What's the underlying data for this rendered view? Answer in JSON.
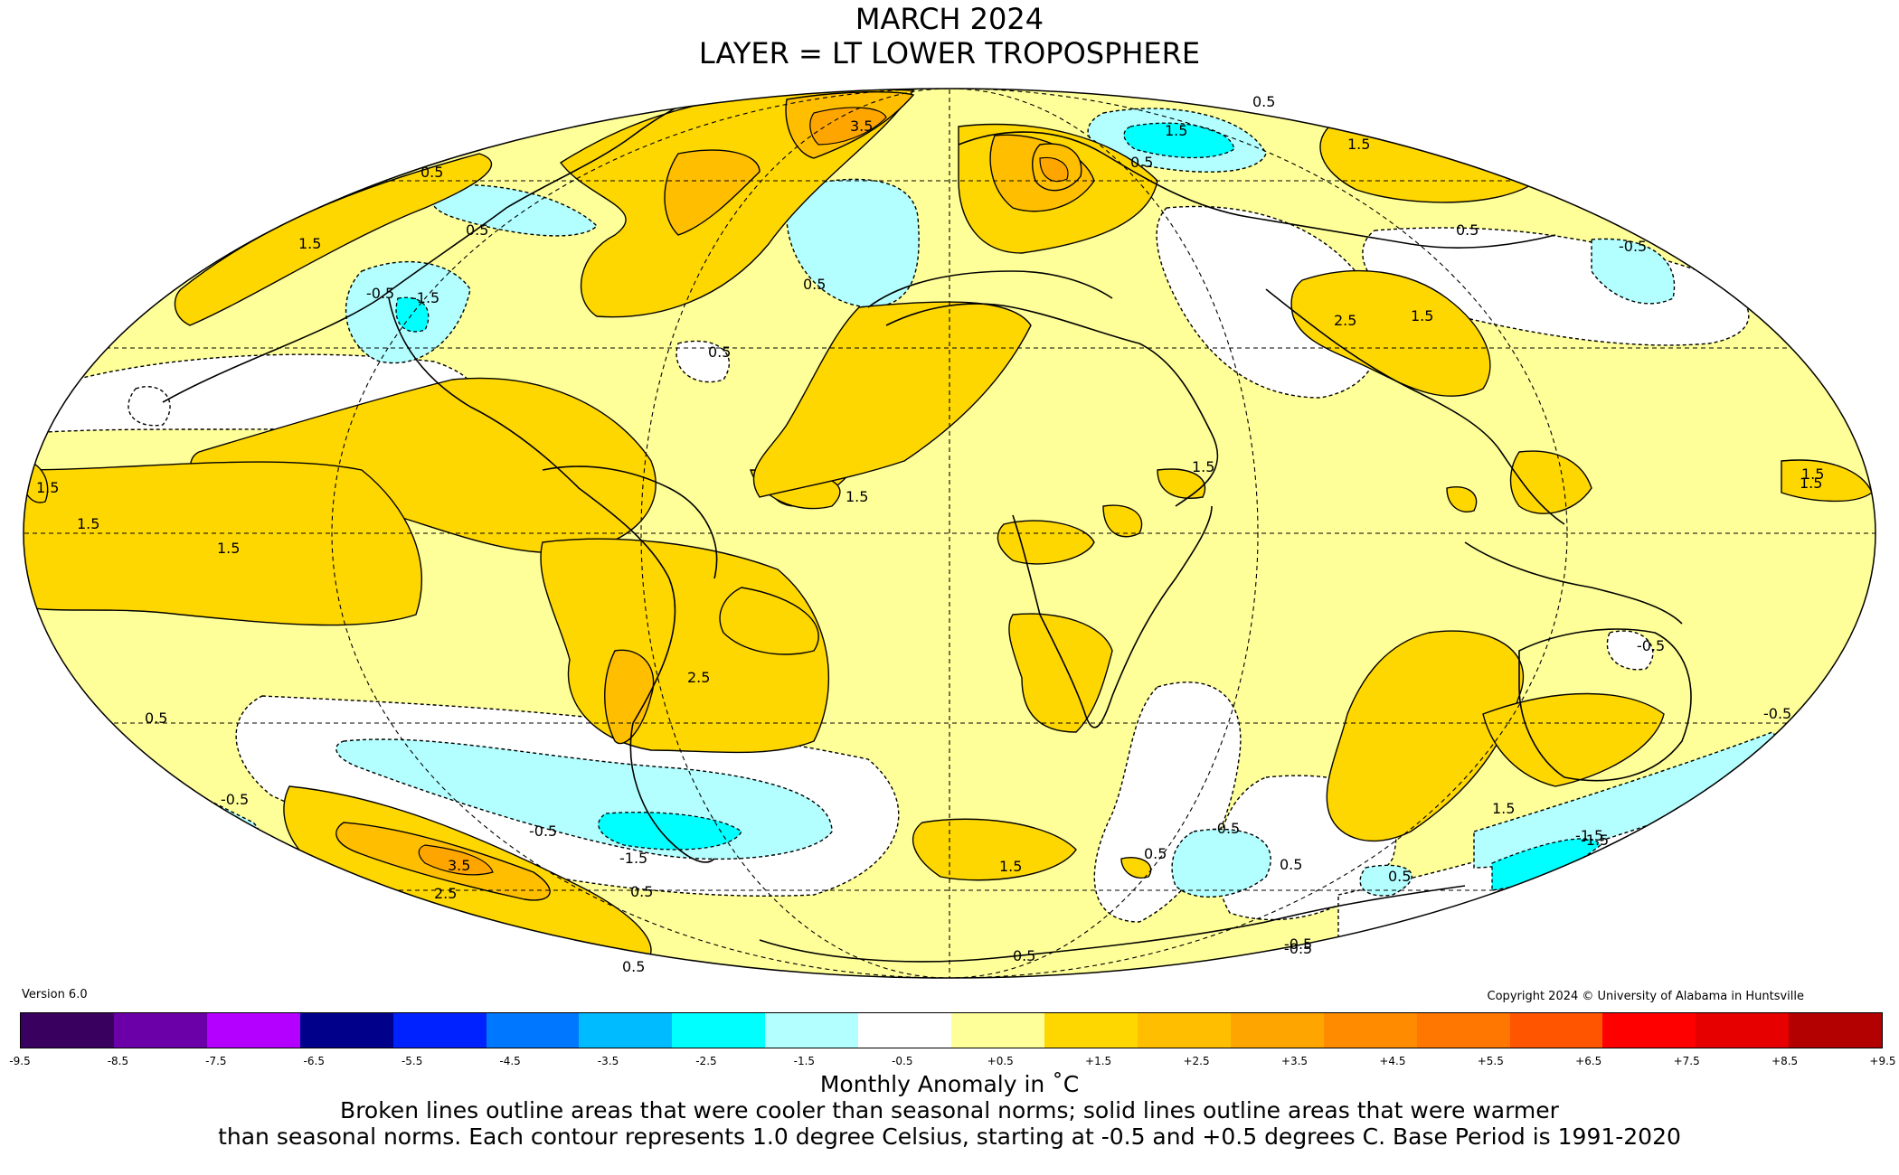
{
  "title": {
    "line1": "MARCH 2024",
    "line2": "LAYER = LT LOWER TROPOSPHERE"
  },
  "version": "Version 6.0",
  "copyright": "Copyright 2024 © University of Alabama in Huntsville",
  "map": {
    "projection": "Mollweide",
    "base_color": "#ffff99",
    "contour_labels": [
      "3.5",
      "0.5",
      "0.5",
      "1.5",
      "-0.5",
      "-1.5",
      "1.5",
      "0.5",
      "0.5",
      "0.5",
      "1.5",
      "1.5",
      "1.5",
      "0.5",
      "2.5",
      "1.5",
      "-0.5",
      "0.5",
      "1.5",
      "-1.5",
      "-0.5",
      "1.5",
      "-0.5",
      "3.5",
      "2.5",
      "0.5",
      "0.5",
      "1.5",
      "-0.5",
      "0.5",
      "0.5",
      "0.5",
      "-0.5",
      "-1.5",
      "-0.5",
      "0.5",
      "1.5",
      "1.5",
      "-0.5",
      "0.5",
      "2.5",
      "1.5",
      "1.5",
      "-0.5",
      "-1.5"
    ]
  },
  "colorbar": {
    "colors": [
      "#3a005f",
      "#6b00a8",
      "#b300ff",
      "#00008b",
      "#0022ff",
      "#0077ff",
      "#00bbff",
      "#00ffff",
      "#b3ffff",
      "#ffffff",
      "#ffff99",
      "#ffd700",
      "#ffbf00",
      "#ffa500",
      "#ff8c00",
      "#ff7700",
      "#ff5500",
      "#ff0000",
      "#e60000",
      "#b30000"
    ],
    "ticks": [
      "-9.5",
      "-8.5",
      "-7.5",
      "-6.5",
      "-5.5",
      "-4.5",
      "-3.5",
      "-2.5",
      "-1.5",
      "-0.5",
      "+0.5",
      "+1.5",
      "+2.5",
      "+3.5",
      "+4.5",
      "+5.5",
      "+6.5",
      "+7.5",
      "+8.5",
      "+9.5"
    ],
    "label": "Monthly Anomaly in ˚C"
  },
  "caption": {
    "line1": "Broken lines outline areas that were cooler than seasonal norms; solid lines outline areas that were warmer",
    "line2": "than seasonal norms. Each contour represents 1.0 degree Celsius, starting at -0.5 and +0.5 degrees C. Base Period is 1991-2020"
  }
}
